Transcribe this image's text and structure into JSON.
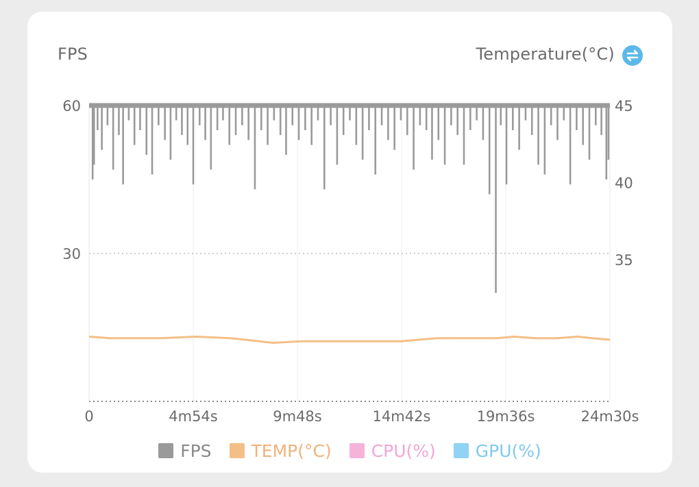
{
  "header": {
    "left_axis_title": "FPS",
    "right_axis_title": "Temperature(°C)"
  },
  "icons": {
    "swap": "swap-arrows-icon"
  },
  "colors": {
    "fps": "#9a9a9a",
    "temp": "#f3bf86",
    "cpu": "#f5b3da",
    "gpu": "#8fd3f5",
    "swap_icon": "#5bb8e8"
  },
  "legend": [
    {
      "label": "FPS",
      "color": "#9a9a9a",
      "text_color": "#8a8a8a"
    },
    {
      "label": "TEMP(°C)",
      "color": "#f3bf86",
      "text_color": "#f0b27a"
    },
    {
      "label": "CPU(%)",
      "color": "#f5b3da",
      "text_color": "#f2a7d3"
    },
    {
      "label": "GPU(%)",
      "color": "#8fd3f5",
      "text_color": "#7fc9f0"
    }
  ],
  "chart_data": {
    "type": "line",
    "x_ticks": [
      "0",
      "4m54s",
      "9m48s",
      "14m42s",
      "19m36s",
      "24m30s"
    ],
    "x_range_seconds": [
      0,
      1470
    ],
    "y_left": {
      "label": "FPS",
      "ticks": [
        60,
        30
      ],
      "range": [
        0,
        60
      ]
    },
    "y_right": {
      "label": "Temperature(°C)",
      "ticks": [
        45,
        40,
        35
      ],
      "range": [
        25.8,
        45
      ]
    },
    "grid": {
      "horizontal_dotted": [
        30
      ],
      "vertical_at_ticks": true
    },
    "series": [
      {
        "name": "FPS",
        "axis": "left",
        "baseline": 60,
        "dips": [
          {
            "t": 10,
            "v": 45
          },
          {
            "t": 14,
            "v": 48
          },
          {
            "t": 24,
            "v": 55
          },
          {
            "t": 36,
            "v": 51
          },
          {
            "t": 52,
            "v": 56
          },
          {
            "t": 68,
            "v": 47
          },
          {
            "t": 84,
            "v": 54
          },
          {
            "t": 96,
            "v": 44
          },
          {
            "t": 112,
            "v": 57
          },
          {
            "t": 128,
            "v": 52
          },
          {
            "t": 144,
            "v": 55
          },
          {
            "t": 162,
            "v": 50
          },
          {
            "t": 178,
            "v": 46
          },
          {
            "t": 196,
            "v": 56
          },
          {
            "t": 214,
            "v": 53
          },
          {
            "t": 230,
            "v": 49
          },
          {
            "t": 246,
            "v": 57
          },
          {
            "t": 262,
            "v": 54
          },
          {
            "t": 278,
            "v": 52
          },
          {
            "t": 294,
            "v": 44
          },
          {
            "t": 312,
            "v": 56
          },
          {
            "t": 328,
            "v": 53
          },
          {
            "t": 344,
            "v": 47
          },
          {
            "t": 362,
            "v": 55
          },
          {
            "t": 378,
            "v": 57
          },
          {
            "t": 396,
            "v": 52
          },
          {
            "t": 414,
            "v": 54
          },
          {
            "t": 432,
            "v": 56
          },
          {
            "t": 450,
            "v": 53
          },
          {
            "t": 468,
            "v": 43
          },
          {
            "t": 486,
            "v": 55
          },
          {
            "t": 504,
            "v": 52
          },
          {
            "t": 522,
            "v": 57
          },
          {
            "t": 540,
            "v": 54
          },
          {
            "t": 556,
            "v": 50
          },
          {
            "t": 574,
            "v": 56
          },
          {
            "t": 592,
            "v": 53
          },
          {
            "t": 610,
            "v": 55
          },
          {
            "t": 628,
            "v": 52
          },
          {
            "t": 646,
            "v": 57
          },
          {
            "t": 664,
            "v": 43
          },
          {
            "t": 682,
            "v": 56
          },
          {
            "t": 700,
            "v": 48
          },
          {
            "t": 718,
            "v": 54
          },
          {
            "t": 736,
            "v": 57
          },
          {
            "t": 754,
            "v": 52
          },
          {
            "t": 772,
            "v": 49
          },
          {
            "t": 790,
            "v": 55
          },
          {
            "t": 808,
            "v": 46
          },
          {
            "t": 826,
            "v": 56
          },
          {
            "t": 844,
            "v": 53
          },
          {
            "t": 862,
            "v": 51
          },
          {
            "t": 880,
            "v": 57
          },
          {
            "t": 898,
            "v": 54
          },
          {
            "t": 916,
            "v": 47
          },
          {
            "t": 934,
            "v": 56
          },
          {
            "t": 952,
            "v": 55
          },
          {
            "t": 968,
            "v": 49
          },
          {
            "t": 986,
            "v": 53
          },
          {
            "t": 1004,
            "v": 48
          },
          {
            "t": 1022,
            "v": 56
          },
          {
            "t": 1040,
            "v": 54
          },
          {
            "t": 1058,
            "v": 48
          },
          {
            "t": 1076,
            "v": 55
          },
          {
            "t": 1094,
            "v": 57
          },
          {
            "t": 1112,
            "v": 53
          },
          {
            "t": 1130,
            "v": 42
          },
          {
            "t": 1148,
            "v": 22
          },
          {
            "t": 1162,
            "v": 56
          },
          {
            "t": 1178,
            "v": 44
          },
          {
            "t": 1196,
            "v": 55
          },
          {
            "t": 1214,
            "v": 51
          },
          {
            "t": 1232,
            "v": 57
          },
          {
            "t": 1250,
            "v": 54
          },
          {
            "t": 1268,
            "v": 48
          },
          {
            "t": 1286,
            "v": 46
          },
          {
            "t": 1304,
            "v": 56
          },
          {
            "t": 1322,
            "v": 53
          },
          {
            "t": 1340,
            "v": 57
          },
          {
            "t": 1358,
            "v": 44
          },
          {
            "t": 1376,
            "v": 55
          },
          {
            "t": 1394,
            "v": 52
          },
          {
            "t": 1412,
            "v": 49
          },
          {
            "t": 1430,
            "v": 56
          },
          {
            "t": 1446,
            "v": 54
          },
          {
            "t": 1460,
            "v": 45
          },
          {
            "t": 1466,
            "v": 49
          }
        ]
      },
      {
        "name": "TEMP(°C)",
        "axis": "right",
        "points": [
          {
            "t": 0,
            "v": 30.0
          },
          {
            "t": 60,
            "v": 29.9
          },
          {
            "t": 120,
            "v": 29.9
          },
          {
            "t": 200,
            "v": 29.9
          },
          {
            "t": 300,
            "v": 30.0
          },
          {
            "t": 400,
            "v": 29.9
          },
          {
            "t": 480,
            "v": 29.7
          },
          {
            "t": 520,
            "v": 29.6
          },
          {
            "t": 600,
            "v": 29.7
          },
          {
            "t": 700,
            "v": 29.7
          },
          {
            "t": 800,
            "v": 29.7
          },
          {
            "t": 880,
            "v": 29.7
          },
          {
            "t": 980,
            "v": 29.9
          },
          {
            "t": 1080,
            "v": 29.9
          },
          {
            "t": 1150,
            "v": 29.9
          },
          {
            "t": 1200,
            "v": 30.0
          },
          {
            "t": 1260,
            "v": 29.9
          },
          {
            "t": 1320,
            "v": 29.9
          },
          {
            "t": 1380,
            "v": 30.0
          },
          {
            "t": 1420,
            "v": 29.9
          },
          {
            "t": 1470,
            "v": 29.8
          }
        ]
      },
      {
        "name": "CPU(%)",
        "axis": "right",
        "points": []
      },
      {
        "name": "GPU(%)",
        "axis": "right",
        "points": []
      }
    ]
  }
}
